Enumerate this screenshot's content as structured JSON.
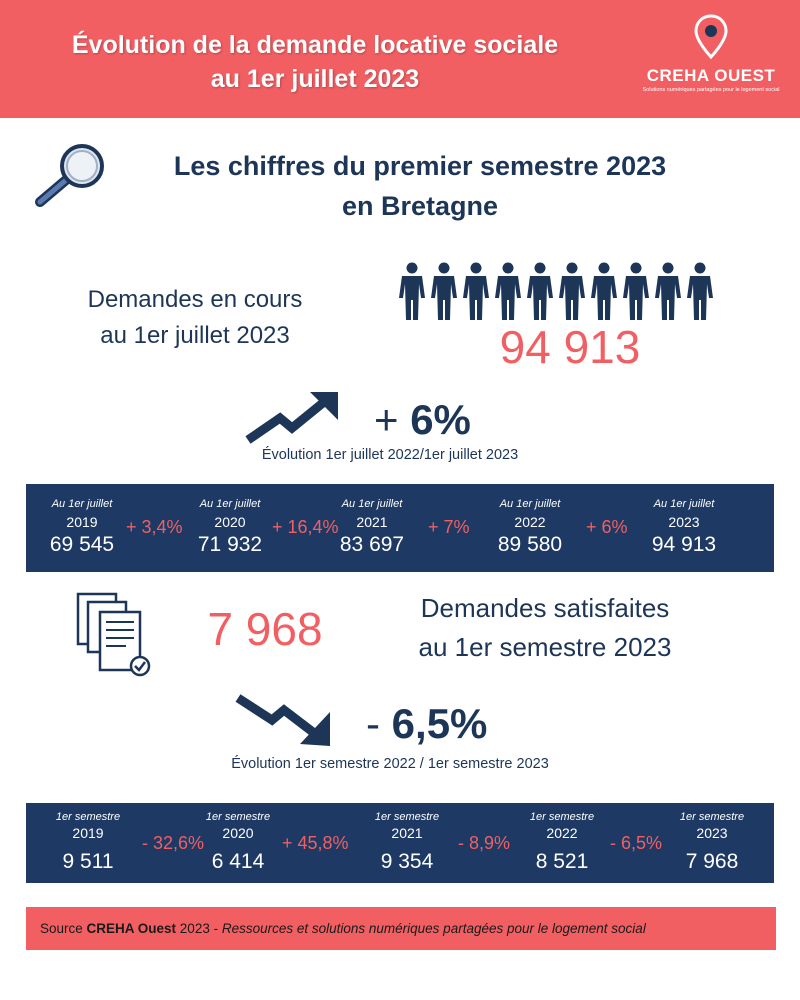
{
  "header": {
    "title_line1": "Évolution de la demande locative sociale",
    "title_line2": "au 1er juillet 2023",
    "logo_name": "CREHA OUEST",
    "logo_tagline": "Solutions numériques partagées pour le logement social",
    "logo_icon": "map-pin-icon"
  },
  "section": {
    "icon": "magnifier-icon",
    "title_line1": "Les chiffres du premier semestre 2023",
    "title_line2": "en Bretagne"
  },
  "demandes_en_cours": {
    "label_line1": "Demandes en cours",
    "label_line2": "au 1er juillet 2023",
    "icon": "people-icon",
    "value": "94 913",
    "trend_icon": "trend-up-arrow-icon",
    "evolution_sign": "+",
    "evolution_value": "6%",
    "evolution_caption": "Évolution 1er juillet 2022/1er juillet 2023",
    "history": [
      {
        "label": "Au 1er juillet",
        "year": "2019",
        "value": "69 545"
      },
      {
        "label": "Au 1er juillet",
        "year": "2020",
        "value": "71 932"
      },
      {
        "label": "Au 1er juillet",
        "year": "2021",
        "value": "83 697"
      },
      {
        "label": "Au 1er juillet",
        "year": "2022",
        "value": "89 580"
      },
      {
        "label": "Au 1er juillet",
        "year": "2023",
        "value": "94 913"
      }
    ],
    "deltas": [
      "+ 3,4%",
      "+ 16,4%",
      "+ 7%",
      "+ 6%"
    ]
  },
  "demandes_satisfaites": {
    "icon": "documents-checklist-icon",
    "value": "7 968",
    "label_line1": "Demandes satisfaites",
    "label_line2": "au 1er semestre 2023",
    "trend_icon": "trend-down-arrow-icon",
    "evolution_sign": "-",
    "evolution_value": "6,5%",
    "evolution_caption": "Évolution 1er semestre 2022 / 1er semestre 2023",
    "history": [
      {
        "label": "1er  semestre",
        "year": "2019",
        "value": "9 511"
      },
      {
        "label": "1er  semestre",
        "year": "2020",
        "value": "6 414"
      },
      {
        "label": "1er  semestre",
        "year": "2021",
        "value": "9 354"
      },
      {
        "label": "1er  semestre",
        "year": "2022",
        "value": "8 521"
      },
      {
        "label": "1er  semestre",
        "year": "2023",
        "value": "7 968"
      }
    ],
    "deltas": [
      "- 32,6%",
      "+ 45,8%",
      "- 8,9%",
      "- 6,5%"
    ]
  },
  "source": {
    "prefix": "Source ",
    "org": "CREHA Ouest",
    "year": " 2023 - ",
    "description": "Ressources et solutions numériques partagées pour le logement social"
  },
  "colors": {
    "coral": "#f25f63",
    "navy": "#1e3a64",
    "text_navy": "#1d3557",
    "white": "#ffffff"
  }
}
